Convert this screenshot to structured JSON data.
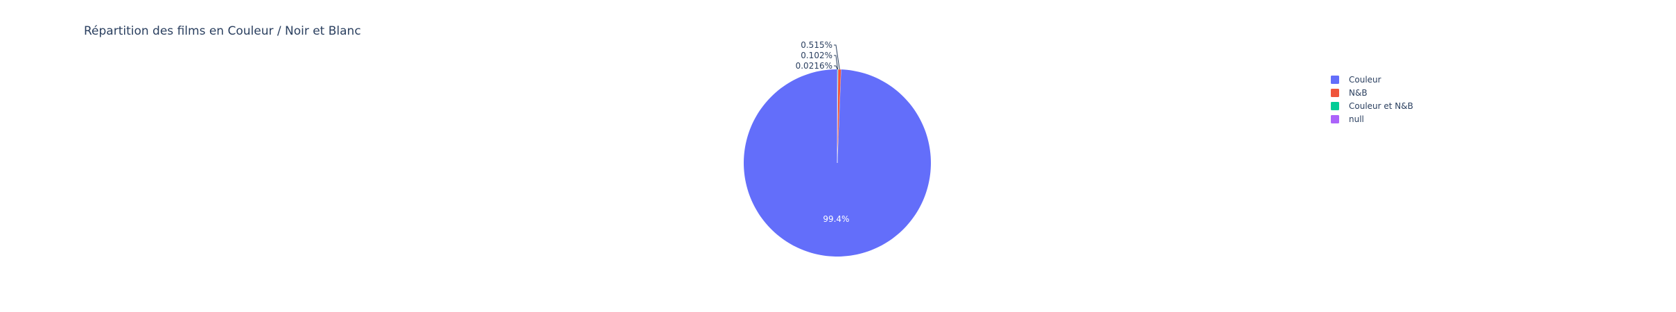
{
  "chart_data": {
    "type": "pie",
    "title": "Répartition des films en Couleur / Noir et Blanc",
    "categories": [
      "Couleur",
      "N&B",
      "Couleur et N&B",
      "null"
    ],
    "values": [
      99.4,
      0.515,
      0.102,
      0.0216
    ],
    "labels": [
      "99.4%",
      "0.515%",
      "0.102%",
      "0.0216%"
    ],
    "colors": [
      "#636efa",
      "#EF553B",
      "#00cc96",
      "#ab63fa"
    ],
    "legend_position": "right"
  }
}
